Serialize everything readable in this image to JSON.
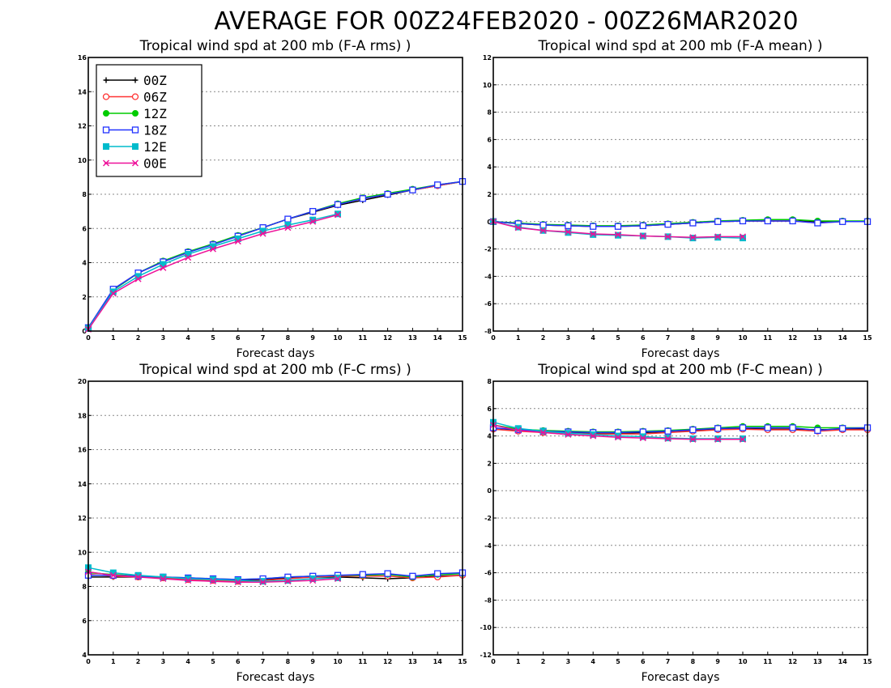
{
  "page_title": "AVERAGE FOR 00Z24FEB2020 - 00Z26MAR2020",
  "legend": [
    {
      "name": "00Z",
      "color": "#000000",
      "marker": "plus"
    },
    {
      "name": "06Z",
      "color": "#ff3333",
      "marker": "open-circle"
    },
    {
      "name": "12Z",
      "color": "#00cc00",
      "marker": "filled-circle"
    },
    {
      "name": "18Z",
      "color": "#2233ff",
      "marker": "open-square"
    },
    {
      "name": "12E",
      "color": "#00bbcc",
      "marker": "filled-square"
    },
    {
      "name": "00E",
      "color": "#ee1199",
      "marker": "x"
    }
  ],
  "chart_data": [
    {
      "type": "line",
      "title": "Tropical wind spd at 200 mb (F-A rms) )",
      "xlabel": "Forecast days",
      "ylabel": "",
      "xlim": [
        0,
        15
      ],
      "ylim": [
        0,
        16
      ],
      "yticks": [
        0,
        2,
        4,
        6,
        8,
        10,
        12,
        14,
        16
      ],
      "xticks": [
        0,
        1,
        2,
        3,
        4,
        5,
        6,
        7,
        8,
        9,
        10,
        11,
        12,
        13,
        14,
        15
      ],
      "grid": "horizontal-dotted",
      "legend_placement": "top-left",
      "series": [
        {
          "name": "00Z",
          "x": [
            0,
            1,
            2,
            3,
            4,
            5,
            6,
            7,
            8,
            9,
            10,
            11,
            12,
            13,
            14,
            15
          ],
          "values": [
            0.2,
            2.4,
            3.4,
            4.05,
            4.6,
            5.1,
            5.55,
            6.05,
            6.55,
            6.95,
            7.35,
            7.65,
            7.95,
            8.25,
            8.5,
            8.75
          ]
        },
        {
          "name": "06Z",
          "x": [
            0,
            1,
            2,
            3,
            4,
            5,
            6,
            7,
            8,
            9,
            10,
            11,
            12,
            13,
            14,
            15
          ],
          "values": [
            0.2,
            2.45,
            3.4,
            4.05,
            4.6,
            5.1,
            5.55,
            6.05,
            6.55,
            7.0,
            7.4,
            7.75,
            8.0,
            8.25,
            8.5,
            8.75
          ]
        },
        {
          "name": "12Z",
          "x": [
            0,
            1,
            2,
            3,
            4,
            5,
            6,
            7,
            8,
            9,
            10,
            11,
            12,
            13,
            14,
            15
          ],
          "values": [
            0.2,
            2.4,
            3.4,
            4.1,
            4.65,
            5.1,
            5.6,
            6.05,
            6.55,
            7.0,
            7.45,
            7.8,
            8.05,
            8.3,
            8.55,
            8.75
          ]
        },
        {
          "name": "18Z",
          "x": [
            0,
            1,
            2,
            3,
            4,
            5,
            6,
            7,
            8,
            9,
            10,
            11,
            12,
            13,
            14,
            15
          ],
          "values": [
            0.2,
            2.45,
            3.4,
            4.05,
            4.6,
            5.05,
            5.55,
            6.05,
            6.55,
            7.0,
            7.4,
            7.75,
            8.0,
            8.25,
            8.55,
            8.75
          ]
        },
        {
          "name": "12E",
          "x": [
            0,
            1,
            2,
            3,
            4,
            5,
            6,
            7,
            8,
            9,
            10
          ],
          "values": [
            0.15,
            2.3,
            3.2,
            3.9,
            4.5,
            4.95,
            5.4,
            5.85,
            6.2,
            6.5,
            6.85
          ]
        },
        {
          "name": "00E",
          "x": [
            0,
            1,
            2,
            3,
            4,
            5,
            6,
            7,
            8,
            9,
            10
          ],
          "values": [
            0.1,
            2.2,
            3.05,
            3.7,
            4.3,
            4.8,
            5.25,
            5.7,
            6.05,
            6.4,
            6.8
          ]
        }
      ]
    },
    {
      "type": "line",
      "title": "Tropical wind spd at 200 mb (F-A mean) )",
      "xlabel": "Forecast days",
      "ylabel": "",
      "xlim": [
        0,
        15
      ],
      "ylim": [
        -8,
        12
      ],
      "yticks": [
        -8,
        -6,
        -4,
        -2,
        0,
        2,
        4,
        6,
        8,
        10,
        12
      ],
      "xticks": [
        0,
        1,
        2,
        3,
        4,
        5,
        6,
        7,
        8,
        9,
        10,
        11,
        12,
        13,
        14,
        15
      ],
      "grid": "horizontal-dotted",
      "series": [
        {
          "name": "00Z",
          "x": [
            0,
            1,
            2,
            3,
            4,
            5,
            6,
            7,
            8,
            9,
            10,
            11,
            12,
            13,
            14,
            15
          ],
          "values": [
            0,
            -0.15,
            -0.25,
            -0.3,
            -0.35,
            -0.35,
            -0.3,
            -0.2,
            -0.1,
            0.0,
            0.05,
            0.05,
            0.05,
            0.0,
            0.0,
            0.0
          ]
        },
        {
          "name": "06Z",
          "x": [
            0,
            1,
            2,
            3,
            4,
            5,
            6,
            7,
            8,
            9,
            10,
            11,
            12,
            13,
            14,
            15
          ],
          "values": [
            0,
            -0.15,
            -0.25,
            -0.3,
            -0.35,
            -0.35,
            -0.3,
            -0.2,
            -0.1,
            0.0,
            0.05,
            0.05,
            0.05,
            -0.1,
            0.0,
            0.0
          ]
        },
        {
          "name": "12Z",
          "x": [
            0,
            1,
            2,
            3,
            4,
            5,
            6,
            7,
            8,
            9,
            10,
            11,
            12,
            13,
            14,
            15
          ],
          "values": [
            0,
            -0.1,
            -0.2,
            -0.25,
            -0.3,
            -0.3,
            -0.25,
            -0.15,
            -0.05,
            0.05,
            0.1,
            0.15,
            0.15,
            0.05,
            0.05,
            0.05
          ]
        },
        {
          "name": "18Z",
          "x": [
            0,
            1,
            2,
            3,
            4,
            5,
            6,
            7,
            8,
            9,
            10,
            11,
            12,
            13,
            14,
            15
          ],
          "values": [
            0,
            -0.15,
            -0.25,
            -0.3,
            -0.35,
            -0.35,
            -0.3,
            -0.2,
            -0.1,
            0.0,
            0.05,
            0.05,
            0.05,
            -0.1,
            0.0,
            0.0
          ]
        },
        {
          "name": "12E",
          "x": [
            0,
            1,
            2,
            3,
            4,
            5,
            6,
            7,
            8,
            9,
            10
          ],
          "values": [
            0,
            -0.4,
            -0.65,
            -0.8,
            -0.95,
            -1.0,
            -1.05,
            -1.1,
            -1.2,
            -1.15,
            -1.2
          ]
        },
        {
          "name": "00E",
          "x": [
            0,
            1,
            2,
            3,
            4,
            5,
            6,
            7,
            8,
            9,
            10
          ],
          "values": [
            0,
            -0.45,
            -0.65,
            -0.75,
            -0.9,
            -0.95,
            -1.05,
            -1.1,
            -1.15,
            -1.1,
            -1.1
          ]
        }
      ]
    },
    {
      "type": "line",
      "title": "Tropical wind spd at 200 mb (F-C rms) )",
      "xlabel": "Forecast days",
      "ylabel": "",
      "xlim": [
        0,
        15
      ],
      "ylim": [
        4,
        20
      ],
      "yticks": [
        4,
        6,
        8,
        10,
        12,
        14,
        16,
        18,
        20
      ],
      "xticks": [
        0,
        1,
        2,
        3,
        4,
        5,
        6,
        7,
        8,
        9,
        10,
        11,
        12,
        13,
        14,
        15
      ],
      "grid": "horizontal-dotted",
      "series": [
        {
          "name": "00Z",
          "x": [
            0,
            1,
            2,
            3,
            4,
            5,
            6,
            7,
            8,
            9,
            10,
            11,
            12,
            13,
            14,
            15
          ],
          "values": [
            8.55,
            8.55,
            8.55,
            8.5,
            8.45,
            8.4,
            8.35,
            8.4,
            8.5,
            8.55,
            8.55,
            8.5,
            8.45,
            8.5,
            8.6,
            8.65
          ]
        },
        {
          "name": "06Z",
          "x": [
            0,
            1,
            2,
            3,
            4,
            5,
            6,
            7,
            8,
            9,
            10,
            11,
            12,
            13,
            14,
            15
          ],
          "values": [
            8.7,
            8.6,
            8.55,
            8.5,
            8.4,
            8.35,
            8.3,
            8.35,
            8.45,
            8.55,
            8.6,
            8.6,
            8.6,
            8.5,
            8.55,
            8.65
          ]
        },
        {
          "name": "12Z",
          "x": [
            0,
            1,
            2,
            3,
            4,
            5,
            6,
            7,
            8,
            9,
            10,
            11,
            12,
            13,
            14,
            15
          ],
          "values": [
            8.8,
            8.7,
            8.6,
            8.55,
            8.5,
            8.45,
            8.4,
            8.45,
            8.55,
            8.6,
            8.65,
            8.65,
            8.7,
            8.55,
            8.7,
            8.75
          ]
        },
        {
          "name": "18Z",
          "x": [
            0,
            1,
            2,
            3,
            4,
            5,
            6,
            7,
            8,
            9,
            10,
            11,
            12,
            13,
            14,
            15
          ],
          "values": [
            8.65,
            8.65,
            8.6,
            8.55,
            8.5,
            8.45,
            8.4,
            8.45,
            8.55,
            8.6,
            8.65,
            8.7,
            8.75,
            8.6,
            8.75,
            8.8
          ]
        },
        {
          "name": "12E",
          "x": [
            0,
            1,
            2,
            3,
            4,
            5,
            6,
            7,
            8,
            9,
            10
          ],
          "values": [
            9.1,
            8.8,
            8.65,
            8.55,
            8.45,
            8.4,
            8.35,
            8.3,
            8.35,
            8.45,
            8.5
          ]
        },
        {
          "name": "00E",
          "x": [
            0,
            1,
            2,
            3,
            4,
            5,
            6,
            7,
            8,
            9,
            10
          ],
          "values": [
            8.85,
            8.65,
            8.55,
            8.45,
            8.35,
            8.3,
            8.25,
            8.25,
            8.3,
            8.35,
            8.45
          ]
        }
      ]
    },
    {
      "type": "line",
      "title": "Tropical wind spd at 200 mb (F-C mean) )",
      "xlabel": "Forecast days",
      "ylabel": "",
      "xlim": [
        0,
        15
      ],
      "ylim": [
        -12,
        8
      ],
      "yticks": [
        -12,
        -10,
        -8,
        -6,
        -4,
        -2,
        0,
        2,
        4,
        6,
        8
      ],
      "xticks": [
        0,
        1,
        2,
        3,
        4,
        5,
        6,
        7,
        8,
        9,
        10,
        11,
        12,
        13,
        14,
        15
      ],
      "grid": "horizontal-dotted",
      "series": [
        {
          "name": "00Z",
          "x": [
            0,
            1,
            2,
            3,
            4,
            5,
            6,
            7,
            8,
            9,
            10,
            11,
            12,
            13,
            14,
            15
          ],
          "values": [
            4.5,
            4.4,
            4.3,
            4.25,
            4.2,
            4.2,
            4.25,
            4.3,
            4.4,
            4.5,
            4.55,
            4.5,
            4.5,
            4.45,
            4.5,
            4.5
          ]
        },
        {
          "name": "06Z",
          "x": [
            0,
            1,
            2,
            3,
            4,
            5,
            6,
            7,
            8,
            9,
            10,
            11,
            12,
            13,
            14,
            15
          ],
          "values": [
            4.5,
            4.35,
            4.25,
            4.2,
            4.15,
            4.15,
            4.15,
            4.25,
            4.35,
            4.45,
            4.5,
            4.45,
            4.45,
            4.35,
            4.45,
            4.45
          ]
        },
        {
          "name": "12Z",
          "x": [
            0,
            1,
            2,
            3,
            4,
            5,
            6,
            7,
            8,
            9,
            10,
            11,
            12,
            13,
            14,
            15
          ],
          "values": [
            4.8,
            4.5,
            4.4,
            4.35,
            4.3,
            4.3,
            4.35,
            4.4,
            4.5,
            4.6,
            4.7,
            4.7,
            4.7,
            4.6,
            4.6,
            4.6
          ]
        },
        {
          "name": "18Z",
          "x": [
            0,
            1,
            2,
            3,
            4,
            5,
            6,
            7,
            8,
            9,
            10,
            11,
            12,
            13,
            14,
            15
          ],
          "values": [
            4.6,
            4.45,
            4.35,
            4.3,
            4.25,
            4.25,
            4.3,
            4.35,
            4.45,
            4.55,
            4.6,
            4.6,
            4.6,
            4.4,
            4.55,
            4.6
          ]
        },
        {
          "name": "12E",
          "x": [
            0,
            1,
            2,
            3,
            4,
            5,
            6,
            7,
            8,
            9,
            10
          ],
          "values": [
            5.0,
            4.55,
            4.35,
            4.2,
            4.1,
            4.0,
            3.95,
            3.85,
            3.8,
            3.8,
            3.8
          ]
        },
        {
          "name": "00E",
          "x": [
            0,
            1,
            2,
            3,
            4,
            5,
            6,
            7,
            8,
            9,
            10
          ],
          "values": [
            4.8,
            4.4,
            4.25,
            4.1,
            4.0,
            3.9,
            3.85,
            3.8,
            3.75,
            3.75,
            3.75
          ]
        }
      ]
    }
  ]
}
